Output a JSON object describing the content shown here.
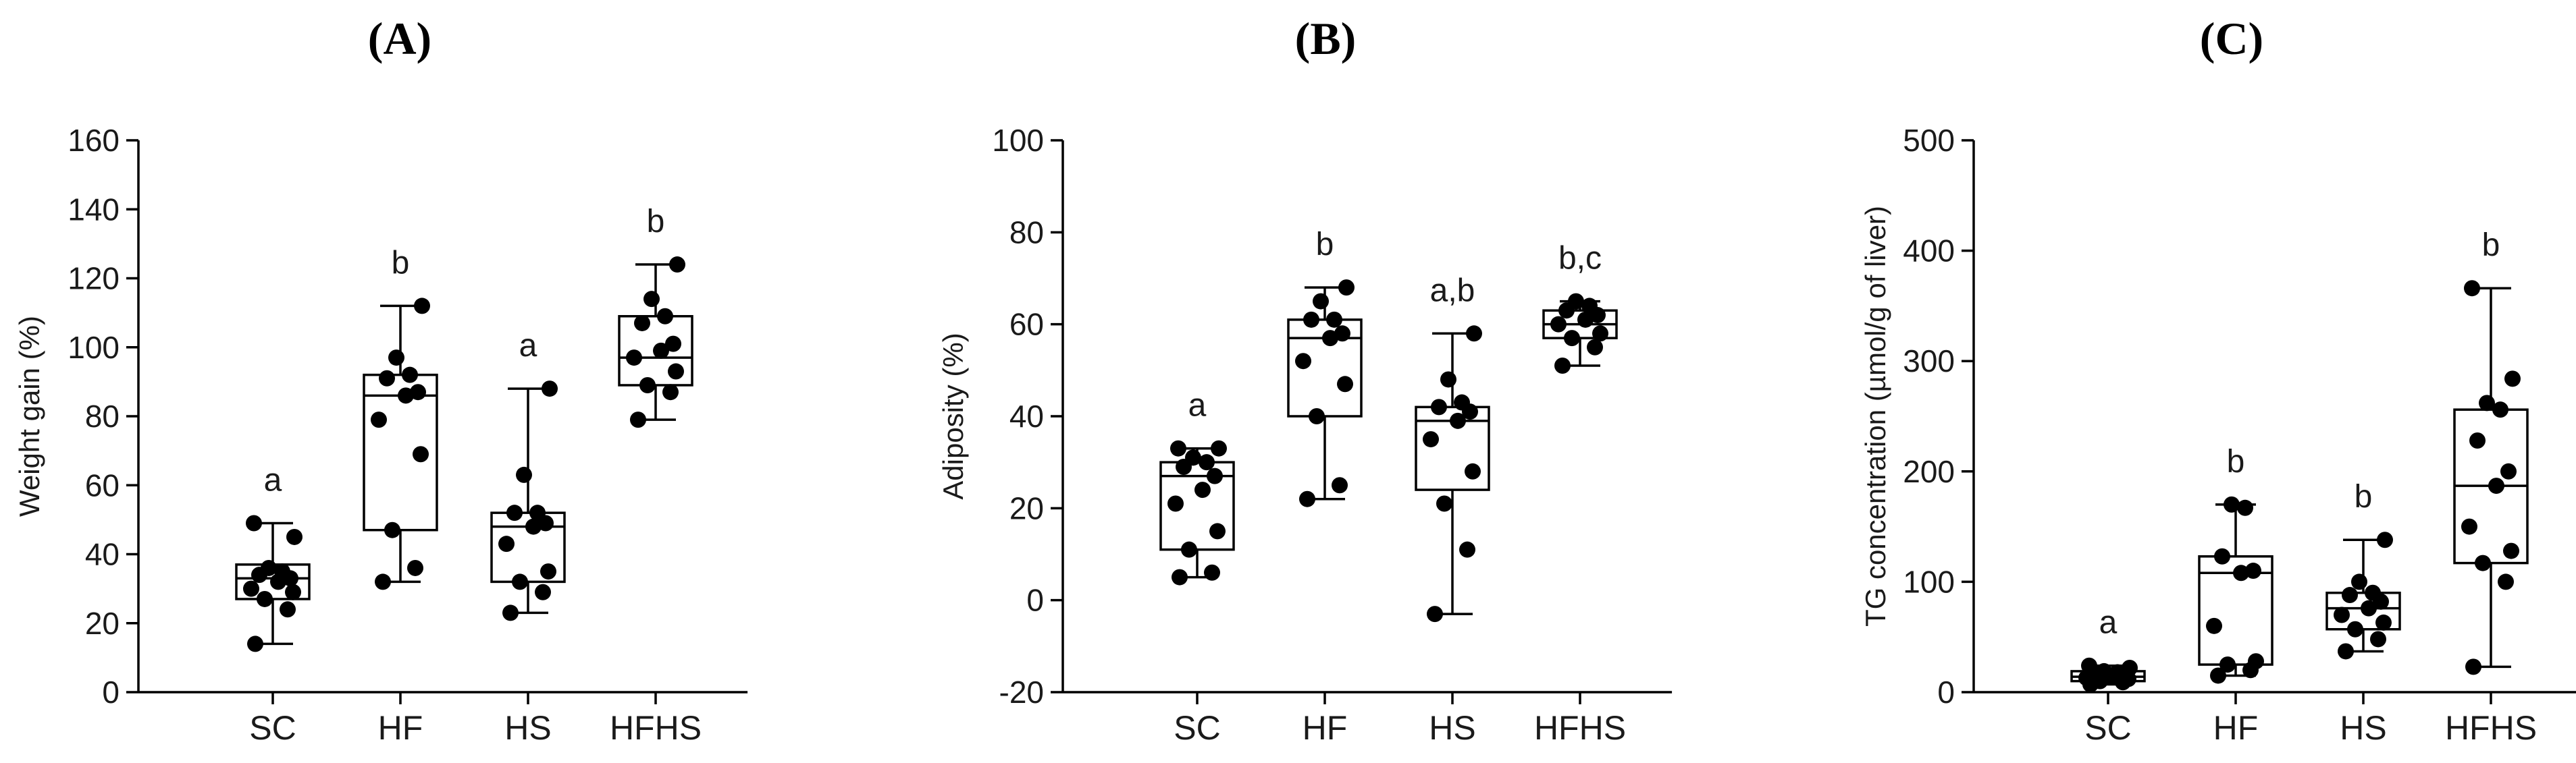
{
  "chart_data": [
    {
      "type": "box",
      "title": "A",
      "xlabel": "",
      "ylabel": "Weight gain (%)",
      "ylim": [
        0,
        160
      ],
      "yticks": [
        0,
        20,
        40,
        60,
        80,
        100,
        120,
        140,
        160
      ],
      "categories": [
        "SC",
        "HF",
        "HS",
        "HFHS"
      ],
      "groups": [
        {
          "name": "SC",
          "letter": "a",
          "min": 14,
          "q1": 27,
          "median": 33,
          "q3": 37,
          "max": 49,
          "points": [
            14,
            24,
            27,
            29,
            30,
            32,
            33,
            34,
            35,
            36,
            45,
            49
          ]
        },
        {
          "name": "HF",
          "letter": "b",
          "min": 32,
          "q1": 47,
          "median": 86,
          "q3": 92,
          "max": 112,
          "points": [
            32,
            36,
            47,
            69,
            79,
            86,
            87,
            91,
            92,
            97,
            112
          ]
        },
        {
          "name": "HS",
          "letter": "a",
          "min": 23,
          "q1": 32,
          "median": 48,
          "q3": 52,
          "max": 88,
          "points": [
            23,
            29,
            32,
            35,
            43,
            48,
            49,
            52,
            52,
            63,
            88
          ]
        },
        {
          "name": "HFHS",
          "letter": "b",
          "min": 79,
          "q1": 89,
          "median": 97,
          "q3": 109,
          "max": 124,
          "points": [
            79,
            87,
            89,
            93,
            97,
            99,
            101,
            107,
            109,
            114,
            124
          ]
        }
      ]
    },
    {
      "type": "box",
      "title": "B",
      "xlabel": "",
      "ylabel": "Adiposity (%)",
      "ylim": [
        -20,
        100
      ],
      "yticks": [
        -20,
        0,
        20,
        40,
        60,
        80,
        100
      ],
      "categories": [
        "SC",
        "HF",
        "HS",
        "HFHS"
      ],
      "groups": [
        {
          "name": "SC",
          "letter": "a",
          "min": 5,
          "q1": 11,
          "median": 27,
          "q3": 30,
          "max": 33,
          "points": [
            5,
            6,
            11,
            15,
            21,
            24,
            27,
            29,
            30,
            31,
            33,
            33
          ]
        },
        {
          "name": "HF",
          "letter": "b",
          "min": 22,
          "q1": 40,
          "median": 57,
          "q3": 61,
          "max": 68,
          "points": [
            22,
            25,
            40,
            47,
            52,
            57,
            58,
            61,
            61,
            65,
            68
          ]
        },
        {
          "name": "HS",
          "letter": "a,b",
          "min": -3,
          "q1": 24,
          "median": 39,
          "q3": 42,
          "max": 58,
          "points": [
            -3,
            11,
            21,
            28,
            35,
            39,
            41,
            42,
            43,
            48,
            58
          ]
        },
        {
          "name": "HFHS",
          "letter": "b,c",
          "min": 51,
          "q1": 57,
          "median": 60,
          "q3": 63,
          "max": 65,
          "points": [
            51,
            55,
            57,
            58,
            60,
            61,
            62,
            63,
            64,
            65
          ]
        }
      ]
    },
    {
      "type": "box",
      "title": "C",
      "xlabel": "",
      "ylabel": "TG concentration (µmol/g of liver)",
      "ylim": [
        0,
        500
      ],
      "yticks": [
        0,
        100,
        200,
        300,
        400,
        500
      ],
      "categories": [
        "SC",
        "HF",
        "HS",
        "HFHS"
      ],
      "groups": [
        {
          "name": "SC",
          "letter": "a",
          "min": 7,
          "q1": 10,
          "median": 14,
          "q3": 19,
          "max": 24,
          "points": [
            7,
            9,
            10,
            12,
            13,
            14,
            15,
            16,
            18,
            19,
            22,
            24
          ]
        },
        {
          "name": "HF",
          "letter": "b",
          "min": 15,
          "q1": 25,
          "median": 108,
          "q3": 123,
          "max": 170,
          "points": [
            15,
            20,
            25,
            28,
            60,
            108,
            110,
            123,
            167,
            170
          ]
        },
        {
          "name": "HS",
          "letter": "b",
          "min": 37,
          "q1": 57,
          "median": 76,
          "q3": 90,
          "max": 138,
          "points": [
            37,
            48,
            57,
            63,
            70,
            76,
            82,
            88,
            90,
            100,
            138
          ]
        },
        {
          "name": "HFHS",
          "letter": "b",
          "min": 23,
          "q1": 117,
          "median": 187,
          "q3": 256,
          "max": 366,
          "points": [
            23,
            100,
            117,
            128,
            150,
            187,
            200,
            228,
            256,
            262,
            284,
            366
          ]
        }
      ]
    }
  ]
}
